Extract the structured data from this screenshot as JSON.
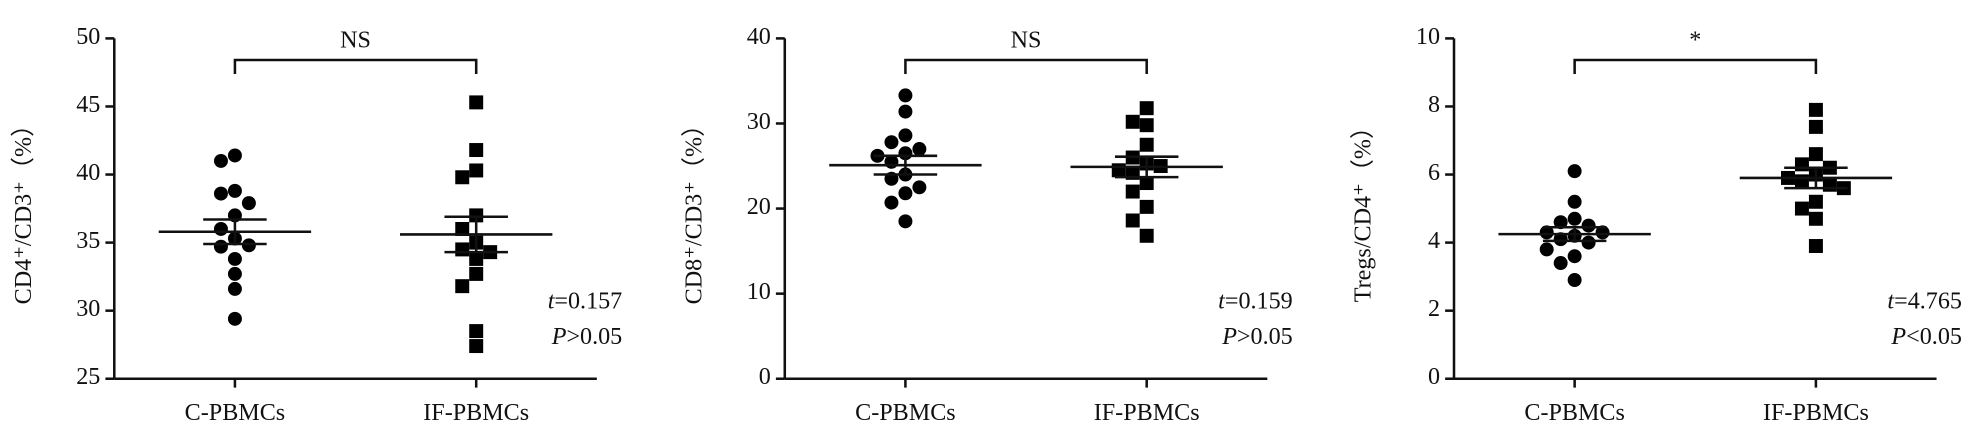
{
  "chart_data": [
    {
      "type": "scatter",
      "ylabel": "CD4⁺/CD3⁺（%）",
      "categories": [
        "C-PBMCs",
        "IF-PBMCs"
      ],
      "ylim": [
        25,
        50
      ],
      "yticks": [
        25,
        30,
        35,
        40,
        45,
        50
      ],
      "comparison": "NS",
      "stats": [
        {
          "symbol": "t",
          "text": "=0.157"
        },
        {
          "symbol": "P",
          "text": ">0.05"
        }
      ],
      "series": [
        {
          "color": "#000000",
          "marker": "circle",
          "values": [
            41.4,
            41.0,
            38.8,
            38.6,
            37.9,
            37.0,
            36.0,
            35.3,
            34.7,
            34.8,
            33.8,
            32.7,
            31.6,
            29.4
          ],
          "mean": 35.8,
          "sem": 0.9
        },
        {
          "color": "#000000",
          "marker": "square",
          "values": [
            45.3,
            41.8,
            40.3,
            39.8,
            37.0,
            36.0,
            35.0,
            34.5,
            34.3,
            33.8,
            32.7,
            31.8,
            28.5,
            27.4
          ],
          "mean": 35.6,
          "sem": 1.3
        }
      ]
    },
    {
      "type": "scatter",
      "ylabel": "CD8⁺/CD3⁺（%）",
      "categories": [
        "C-PBMCs",
        "IF-PBMCs"
      ],
      "ylim": [
        0,
        40
      ],
      "yticks": [
        0,
        10,
        20,
        30,
        40
      ],
      "comparison": "NS",
      "stats": [
        {
          "symbol": "t",
          "text": "=0.159"
        },
        {
          "symbol": "P",
          "text": ">0.05"
        }
      ],
      "series": [
        {
          "color": "#000000",
          "marker": "circle",
          "values": [
            33.3,
            31.4,
            28.6,
            27.8,
            27.0,
            26.5,
            26.2,
            25.5,
            24.0,
            23.5,
            22.5,
            21.8,
            20.7,
            18.5
          ],
          "mean": 25.1,
          "sem": 1.1
        },
        {
          "color": "#000000",
          "marker": "square",
          "values": [
            31.8,
            30.2,
            29.8,
            27.5,
            26.0,
            25.3,
            25.0,
            24.5,
            24.2,
            23.0,
            22.0,
            20.2,
            18.6,
            16.8
          ],
          "mean": 24.9,
          "sem": 1.2
        }
      ]
    },
    {
      "type": "scatter",
      "ylabel": "Tregs/CD4⁺（%）",
      "categories": [
        "C-PBMCs",
        "IF-PBMCs"
      ],
      "ylim": [
        0,
        10
      ],
      "yticks": [
        0,
        2,
        4,
        6,
        8,
        10
      ],
      "comparison": "*",
      "stats": [
        {
          "symbol": "t",
          "text": "=4.765"
        },
        {
          "symbol": "P",
          "text": "<0.05"
        }
      ],
      "series": [
        {
          "color": "#000000",
          "marker": "circle",
          "values": [
            6.1,
            5.2,
            4.7,
            4.6,
            4.5,
            4.3,
            4.3,
            4.2,
            4.1,
            4.0,
            3.8,
            3.6,
            3.4,
            2.9
          ],
          "mean": 4.25,
          "sem": 0.2
        },
        {
          "color": "#000000",
          "marker": "square",
          "values": [
            7.9,
            7.4,
            6.6,
            6.3,
            6.2,
            6.0,
            5.9,
            5.8,
            5.7,
            5.6,
            5.2,
            5.0,
            4.7,
            3.9
          ],
          "mean": 5.9,
          "sem": 0.3
        }
      ]
    }
  ]
}
